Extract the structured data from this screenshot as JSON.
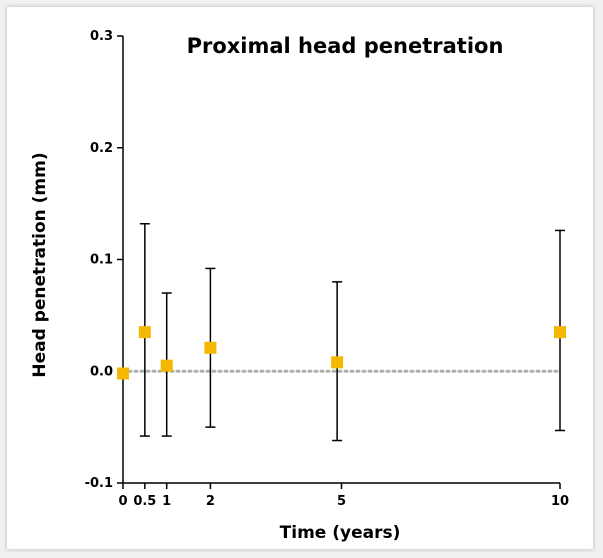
{
  "chart_data": {
    "type": "scatter",
    "title": "Proximal head penetration",
    "xlabel": "Time (years)",
    "ylabel": "Head penetration (mm)",
    "xlim": [
      0,
      10
    ],
    "ylim": [
      -0.1,
      0.3
    ],
    "x_ticks": [
      0,
      0.5,
      1,
      2,
      5,
      10
    ],
    "x_tick_labels": [
      "0",
      "0.5",
      "1",
      "2",
      "5",
      "10"
    ],
    "y_ticks": [
      -0.1,
      0.0,
      0.1,
      0.2,
      0.3
    ],
    "y_tick_labels": [
      "-0.1",
      "0.0",
      "0.1",
      "0.2",
      "0.3"
    ],
    "reference_line": {
      "y": 0.0,
      "style": "dotted",
      "color": "#b0b0b0"
    },
    "series": [
      {
        "marker_color": "#f5b800",
        "x": [
          0,
          0.5,
          1,
          2,
          4.9,
          10
        ],
        "y": [
          -0.002,
          0.035,
          0.005,
          0.021,
          0.008,
          0.035
        ],
        "y_upper": [
          null,
          0.132,
          0.07,
          0.092,
          0.08,
          0.126
        ],
        "y_lower": [
          null,
          -0.058,
          -0.058,
          -0.05,
          -0.062,
          -0.053
        ]
      }
    ],
    "grid": false,
    "legend": "none"
  }
}
